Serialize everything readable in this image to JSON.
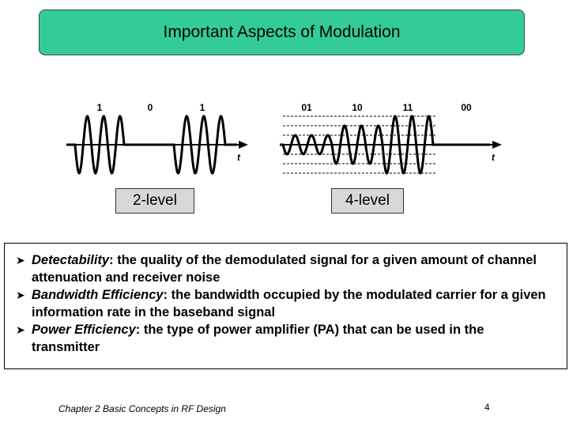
{
  "title": "Important Aspects of Modulation",
  "diagram": {
    "two_level": {
      "bits": [
        "1",
        "0",
        "1"
      ],
      "axis_label": "t",
      "level_label": "2-level"
    },
    "four_level": {
      "bits": [
        "01",
        "10",
        "11",
        "00"
      ],
      "axis_label": "t",
      "level_label": "4-level"
    },
    "wave_color": "#000000"
  },
  "bullets": [
    {
      "term": "Detectability",
      "text": ": the quality of the demodulated signal for a given amount of channel attenuation and receiver noise"
    },
    {
      "term": "Bandwidth Efficiency",
      "text": ": the bandwidth occupied by the modulated carrier for a given information rate in the baseband signal"
    },
    {
      "term": "Power Efficiency",
      "text": ": the type of power amplifier (PA) that can be used in the transmitter"
    }
  ],
  "footer": {
    "chapter": "Chapter 2 Basic Concepts in RF Design",
    "page_number": "4"
  },
  "colors": {
    "title_bg": "#33cc99",
    "level_bg": "#d8d8d8"
  }
}
